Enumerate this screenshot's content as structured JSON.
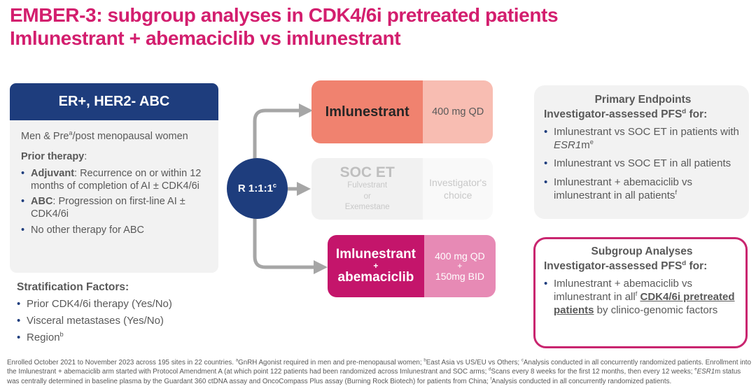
{
  "colors": {
    "accent_magenta": "#d31e6e",
    "navy": "#1e3d7d",
    "salmon": "#f0826f",
    "salmon_light": "#f8bdb2",
    "combo_magenta": "#c4156b",
    "combo_pink": "#e78ab5",
    "gray_panel": "#f2f2f2",
    "body_text": "#595959",
    "arrow_gray": "#a6a6a6",
    "subgroup_border": "#c9256f"
  },
  "title": {
    "line1": "EMBER-3: subgroup analyses in CDK4/6i pretreated patients",
    "line2": "Imlunestrant + abemaciclib vs imlunestrant"
  },
  "population_box": {
    "header": "ER+, HER2- ABC",
    "intro_segments": [
      {
        "t": "Men & Pre"
      },
      {
        "t": "a",
        "sup": true
      },
      {
        "t": "/post menopausal women"
      }
    ],
    "prior_therapy_segments": [
      {
        "t": "Prior therapy",
        "b": true
      },
      {
        "t": ":"
      }
    ],
    "bullets": [
      [
        {
          "t": "Adjuvant",
          "b": true
        },
        {
          "t": ": Recurrence on or within 12 months of completion of AI ± CDK4/6i"
        }
      ],
      [
        {
          "t": "ABC",
          "b": true
        },
        {
          "t": ": Progression on first-line AI ± CDK4/6i"
        }
      ],
      [
        {
          "t": "No other therapy for ABC"
        }
      ]
    ]
  },
  "stratification": {
    "heading": "Stratification Factors:",
    "items": [
      [
        {
          "t": "Prior CDK4/6i therapy (Yes/No)"
        }
      ],
      [
        {
          "t": "Visceral metastases (Yes/No)"
        }
      ],
      [
        {
          "t": "Region"
        },
        {
          "t": "b",
          "sup": true
        }
      ]
    ]
  },
  "randomization": {
    "label_segments": [
      {
        "t": "R 1:1:1"
      },
      {
        "t": "c",
        "sup": true
      }
    ]
  },
  "arms": {
    "imlunestrant": {
      "name": "Imlunestrant",
      "dose": "400 mg QD"
    },
    "soc": {
      "name": "SOC ET",
      "drug_lines": [
        "Fulvestrant",
        "or",
        "Exemestane"
      ],
      "choice_lines": [
        "Investigator's",
        "choice"
      ]
    },
    "combo": {
      "name_lines": [
        "Imlunestrant",
        "+",
        "abemaciclib"
      ],
      "dose_lines": [
        "400 mg QD",
        "+",
        "150mg BID"
      ]
    }
  },
  "primary_endpoints": {
    "heading": "Primary Endpoints",
    "subheading_segments": [
      {
        "t": "Investigator-assessed PFS"
      },
      {
        "t": "d",
        "sup": true
      },
      {
        "t": " for:"
      }
    ],
    "bullets": [
      [
        {
          "t": "Imlunestrant vs SOC ET in patients with "
        },
        {
          "t": "ESR1",
          "i": true
        },
        {
          "t": "m"
        },
        {
          "t": "e",
          "sup": true
        }
      ],
      [
        {
          "t": "Imlunestrant vs SOC ET in all patients"
        }
      ],
      [
        {
          "t": "Imlunestrant + abemaciclib vs imlunestrant in all patients"
        },
        {
          "t": "f",
          "sup": true
        }
      ]
    ]
  },
  "subgroup_analyses": {
    "heading": "Subgroup Analyses",
    "subheading_segments": [
      {
        "t": "Investigator-assessed PFS"
      },
      {
        "t": "d",
        "sup": true
      },
      {
        "t": " for:"
      }
    ],
    "bullets": [
      [
        {
          "t": "Imlunestrant + abemaciclib vs imlunestrant in all"
        },
        {
          "t": "f",
          "sup": true
        },
        {
          "t": " "
        },
        {
          "t": "CDK4/6i pretreated patients",
          "b": true,
          "u": true
        },
        {
          "t": " by clinico-genomic factors"
        }
      ]
    ]
  },
  "footnote_segments": [
    {
      "t": "Enrolled October 2021 to November 2023 across 195 sites in 22 countries. "
    },
    {
      "t": "a",
      "sup": true
    },
    {
      "t": "GnRH Agonist required in men and pre-menopausal women; "
    },
    {
      "t": "b",
      "sup": true
    },
    {
      "t": "East Asia vs US/EU vs Others; "
    },
    {
      "t": "c",
      "sup": true
    },
    {
      "t": "Analysis conducted in all concurrently randomized patients. Enrollment into the Imlunestrant + abemaciclib arm started with Protocol Amendment A (at which point 122 patients had been randomized across Imlunestrant and SOC arms; "
    },
    {
      "t": "d",
      "sup": true
    },
    {
      "t": "Scans every 8 weeks for the first 12 months, then every 12 weeks; "
    },
    {
      "t": "e",
      "sup": true
    },
    {
      "t": "ESR1",
      "i": true
    },
    {
      "t": "m status was centrally determined in baseline plasma by the Guardant 360 ctDNA assay and OncoCompass Plus assay (Burning Rock Biotech) for patients from China; "
    },
    {
      "t": "f",
      "sup": true
    },
    {
      "t": "Analysis conducted in all concurrently randomized patients."
    }
  ]
}
